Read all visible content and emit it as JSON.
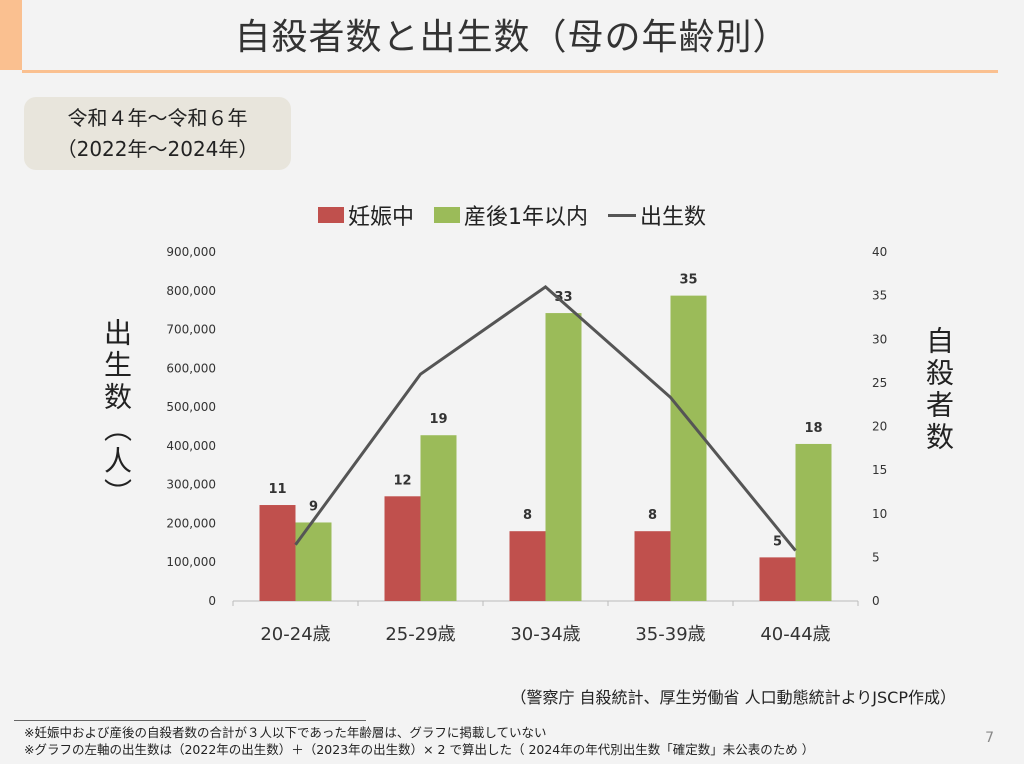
{
  "title": "自殺者数と出生数（母の年齢別）",
  "period": {
    "line1": "令和４年～令和６年",
    "line2": "（2022年～2024年）"
  },
  "legend": {
    "pregnant": "妊娠中",
    "postpartum": "産後1年以内",
    "births": "出生数"
  },
  "colors": {
    "accent": "#fac090",
    "pregnant": "#c0504d",
    "postpartum": "#9bbb59",
    "births": "#555555"
  },
  "left_axis_label": "出生数（人）",
  "right_axis_label": "自殺者数",
  "source": "（警察庁 自殺統計、厚生労働省 人口動態統計よりJSCP作成）",
  "notes": [
    "※妊娠中および産後の自殺者数の合計が３人以下であった年齢層は、グラフに掲載していない",
    "※グラフの左軸の出生数は（2022年の出生数）＋（2023年の出生数）× 2  で算出した（ 2024年の年代別出生数「確定数」未公表のため ）"
  ],
  "page_number": "7",
  "chart_data": {
    "type": "bar",
    "categories": [
      "20-24歳",
      "25-29歳",
      "30-34歳",
      "35-39歳",
      "40-44歳"
    ],
    "series": [
      {
        "name": "妊娠中",
        "axis": "right",
        "values": [
          11,
          12,
          8,
          8,
          5
        ]
      },
      {
        "name": "産後1年以内",
        "axis": "right",
        "values": [
          9,
          19,
          33,
          35,
          18
        ]
      },
      {
        "name": "出生数",
        "axis": "left",
        "type": "line",
        "values": [
          145000,
          585000,
          810000,
          525000,
          130000
        ]
      }
    ],
    "left_axis": {
      "ylim": [
        0,
        900000
      ],
      "ticks": [
        "0",
        "100,000",
        "200,000",
        "300,000",
        "400,000",
        "500,000",
        "600,000",
        "700,000",
        "800,000",
        "900,000"
      ]
    },
    "right_axis": {
      "ylim": [
        0,
        40
      ],
      "ticks": [
        "0",
        "5",
        "10",
        "15",
        "20",
        "25",
        "30",
        "35",
        "40"
      ]
    },
    "legend_position": "top-center",
    "grid": false
  }
}
